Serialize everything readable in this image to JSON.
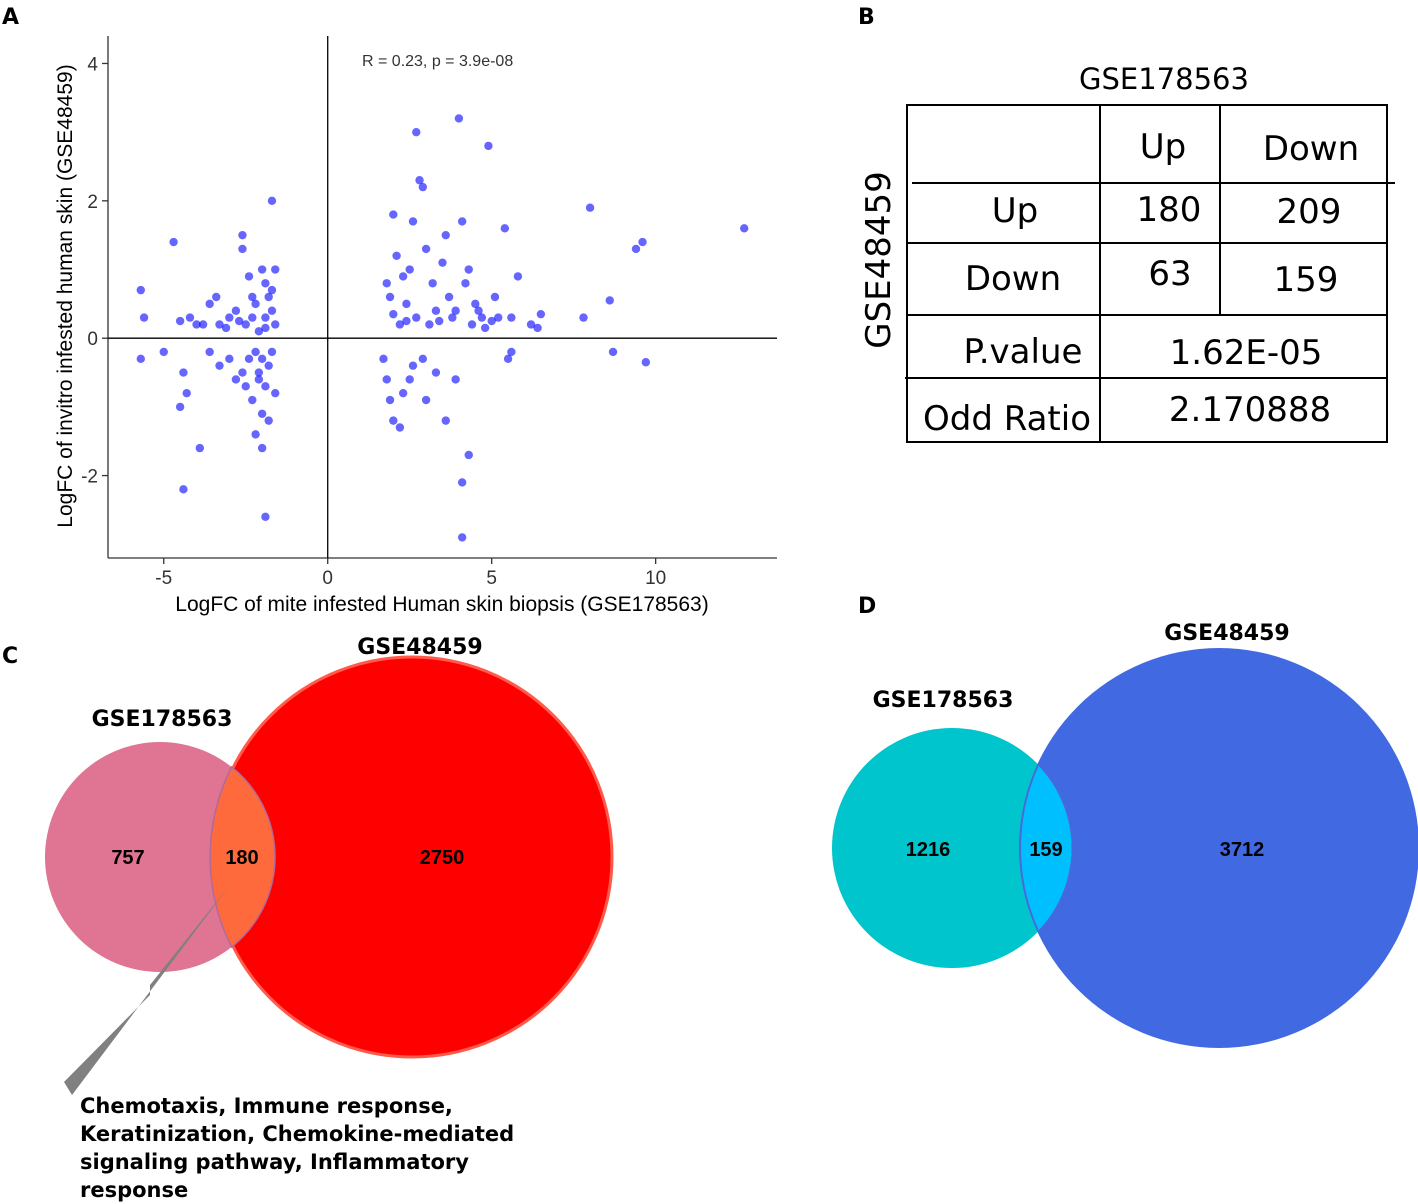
{
  "panels": {
    "a": "A",
    "b": "B",
    "c": "C",
    "d": "D"
  },
  "chart_data": [
    {
      "type": "scatter",
      "panel": "A",
      "xlabel": "LogFC of mite infested Human skin biopsis (GSE178563)",
      "ylabel": "LogFC of invitro infested human skin (GSE48459)",
      "xlim": [
        -6.7,
        13.7
      ],
      "ylim": [
        -3.2,
        4.4
      ],
      "xticks": [
        -5,
        0,
        5,
        10
      ],
      "yticks": [
        -2,
        0,
        2,
        4
      ],
      "annotation": "R = 0.23, p = 3.9e-08",
      "point_color": "#0000ff",
      "points": [
        [
          -4.7,
          1.4
        ],
        [
          -5.7,
          0.7
        ],
        [
          -5.6,
          0.3
        ],
        [
          -5.7,
          -0.3
        ],
        [
          -5.0,
          -0.2
        ],
        [
          -4.4,
          -0.5
        ],
        [
          -4.3,
          -0.8
        ],
        [
          -4.5,
          -1.0
        ],
        [
          -3.9,
          -1.6
        ],
        [
          -4.4,
          -2.2
        ],
        [
          -3.6,
          0.5
        ],
        [
          -3.4,
          0.6
        ],
        [
          -3.3,
          0.2
        ],
        [
          -3.0,
          0.3
        ],
        [
          -2.8,
          0.4
        ],
        [
          -2.6,
          1.3
        ],
        [
          -2.6,
          1.5
        ],
        [
          -2.4,
          0.9
        ],
        [
          -2.3,
          0.3
        ],
        [
          -2.1,
          -0.6
        ],
        [
          -2.0,
          1.0
        ],
        [
          -1.9,
          0.8
        ],
        [
          -1.8,
          0.6
        ],
        [
          -1.7,
          0.4
        ],
        [
          -1.6,
          0.2
        ],
        [
          -2.2,
          0.5
        ],
        [
          -1.9,
          0.3
        ],
        [
          -2.5,
          0.2
        ],
        [
          -2.7,
          0.25
        ],
        [
          -3.1,
          0.15
        ],
        [
          -2.0,
          -0.3
        ],
        [
          -2.1,
          -0.5
        ],
        [
          -1.9,
          -0.7
        ],
        [
          -2.3,
          -0.9
        ],
        [
          -2.0,
          -1.1
        ],
        [
          -1.8,
          -1.2
        ],
        [
          -2.2,
          -1.4
        ],
        [
          -2.0,
          -1.6
        ],
        [
          -1.9,
          -2.6
        ],
        [
          -1.7,
          2.0
        ],
        [
          -1.6,
          1.0
        ],
        [
          -1.7,
          0.7
        ],
        [
          -1.8,
          -0.4
        ],
        [
          -1.6,
          -0.8
        ],
        [
          -2.4,
          -0.3
        ],
        [
          -2.6,
          -0.5
        ],
        [
          -2.8,
          -0.6
        ],
        [
          -3.0,
          -0.3
        ],
        [
          -3.3,
          -0.4
        ],
        [
          -3.6,
          -0.2
        ],
        [
          -4.0,
          0.2
        ],
        [
          -4.2,
          0.3
        ],
        [
          -4.5,
          0.25
        ],
        [
          -3.8,
          0.2
        ],
        [
          -2.3,
          0.6
        ],
        [
          -2.1,
          0.1
        ],
        [
          -1.9,
          0.15
        ],
        [
          -1.7,
          -0.2
        ],
        [
          -2.2,
          -0.2
        ],
        [
          -2.5,
          -0.7
        ],
        [
          1.7,
          -0.3
        ],
        [
          1.8,
          0.8
        ],
        [
          1.9,
          0.6
        ],
        [
          2.0,
          1.8
        ],
        [
          2.1,
          1.2
        ],
        [
          2.3,
          0.9
        ],
        [
          2.4,
          0.5
        ],
        [
          2.6,
          1.7
        ],
        [
          2.7,
          3.0
        ],
        [
          2.8,
          2.3
        ],
        [
          2.9,
          2.2
        ],
        [
          3.0,
          1.3
        ],
        [
          3.2,
          0.8
        ],
        [
          3.3,
          0.4
        ],
        [
          3.5,
          1.1
        ],
        [
          3.7,
          0.6
        ],
        [
          3.9,
          0.4
        ],
        [
          4.0,
          3.2
        ],
        [
          4.1,
          1.7
        ],
        [
          4.3,
          1.0
        ],
        [
          4.5,
          0.5
        ],
        [
          4.7,
          0.3
        ],
        [
          4.9,
          2.8
        ],
        [
          5.0,
          0.25
        ],
        [
          5.2,
          0.3
        ],
        [
          5.4,
          1.6
        ],
        [
          5.6,
          0.3
        ],
        [
          5.8,
          0.9
        ],
        [
          6.2,
          0.2
        ],
        [
          6.5,
          0.35
        ],
        [
          8.0,
          1.9
        ],
        [
          8.6,
          0.55
        ],
        [
          9.4,
          1.3
        ],
        [
          9.6,
          1.4
        ],
        [
          12.7,
          1.6
        ],
        [
          7.8,
          0.3
        ],
        [
          1.8,
          -0.6
        ],
        [
          1.9,
          -0.9
        ],
        [
          2.0,
          -1.2
        ],
        [
          2.2,
          -1.3
        ],
        [
          2.3,
          -0.8
        ],
        [
          2.5,
          -0.6
        ],
        [
          2.6,
          -0.4
        ],
        [
          2.9,
          -0.3
        ],
        [
          3.0,
          -0.9
        ],
        [
          3.3,
          -0.5
        ],
        [
          3.6,
          -1.2
        ],
        [
          3.9,
          -0.6
        ],
        [
          4.1,
          -2.1
        ],
        [
          4.3,
          -1.7
        ],
        [
          4.1,
          -2.9
        ],
        [
          5.5,
          -0.3
        ],
        [
          5.6,
          -0.2
        ],
        [
          8.7,
          -0.2
        ],
        [
          9.7,
          -0.35
        ],
        [
          2.4,
          0.25
        ],
        [
          2.7,
          0.3
        ],
        [
          3.1,
          0.2
        ],
        [
          3.4,
          0.25
        ],
        [
          4.4,
          0.2
        ],
        [
          4.8,
          0.15
        ],
        [
          2.0,
          0.35
        ],
        [
          2.2,
          0.2
        ],
        [
          3.8,
          0.3
        ],
        [
          4.6,
          0.4
        ],
        [
          2.5,
          1.0
        ],
        [
          3.6,
          1.5
        ],
        [
          4.2,
          0.8
        ],
        [
          5.1,
          0.6
        ],
        [
          6.4,
          0.15
        ]
      ]
    },
    {
      "type": "table",
      "panel": "B",
      "title": "GSE178563",
      "row_group_label": "GSE48459",
      "columns": [
        "Up",
        "Down"
      ],
      "rows": [
        {
          "label": "Up",
          "values": [
            "180",
            "209"
          ]
        },
        {
          "label": "Down",
          "values": [
            "63",
            "159"
          ]
        }
      ],
      "pvalue_label": "P.value",
      "pvalue": "1.62E-05",
      "odds_label": "Odd Ratio",
      "odds": "2.170888"
    },
    {
      "type": "venn",
      "panel": "C",
      "sets": [
        {
          "name": "GSE178563",
          "only": "757",
          "color": "#d4466f"
        },
        {
          "name": "GSE48459",
          "only": "2750",
          "color": "#ff0000"
        }
      ],
      "intersection": "180",
      "intersection_color": "#ff6a3c"
    },
    {
      "type": "venn",
      "panel": "D",
      "sets": [
        {
          "name": "GSE178563",
          "only": "1216",
          "color": "#00c5cc"
        },
        {
          "name": "GSE48459",
          "only": "3712",
          "color": "#4169e1"
        }
      ],
      "intersection": "159",
      "intersection_color": "#00bfff"
    }
  ],
  "callout_note": "Chemotaxis, Immune response, Keratinization, Chemokine-mediated signaling pathway, Inflammatory response"
}
